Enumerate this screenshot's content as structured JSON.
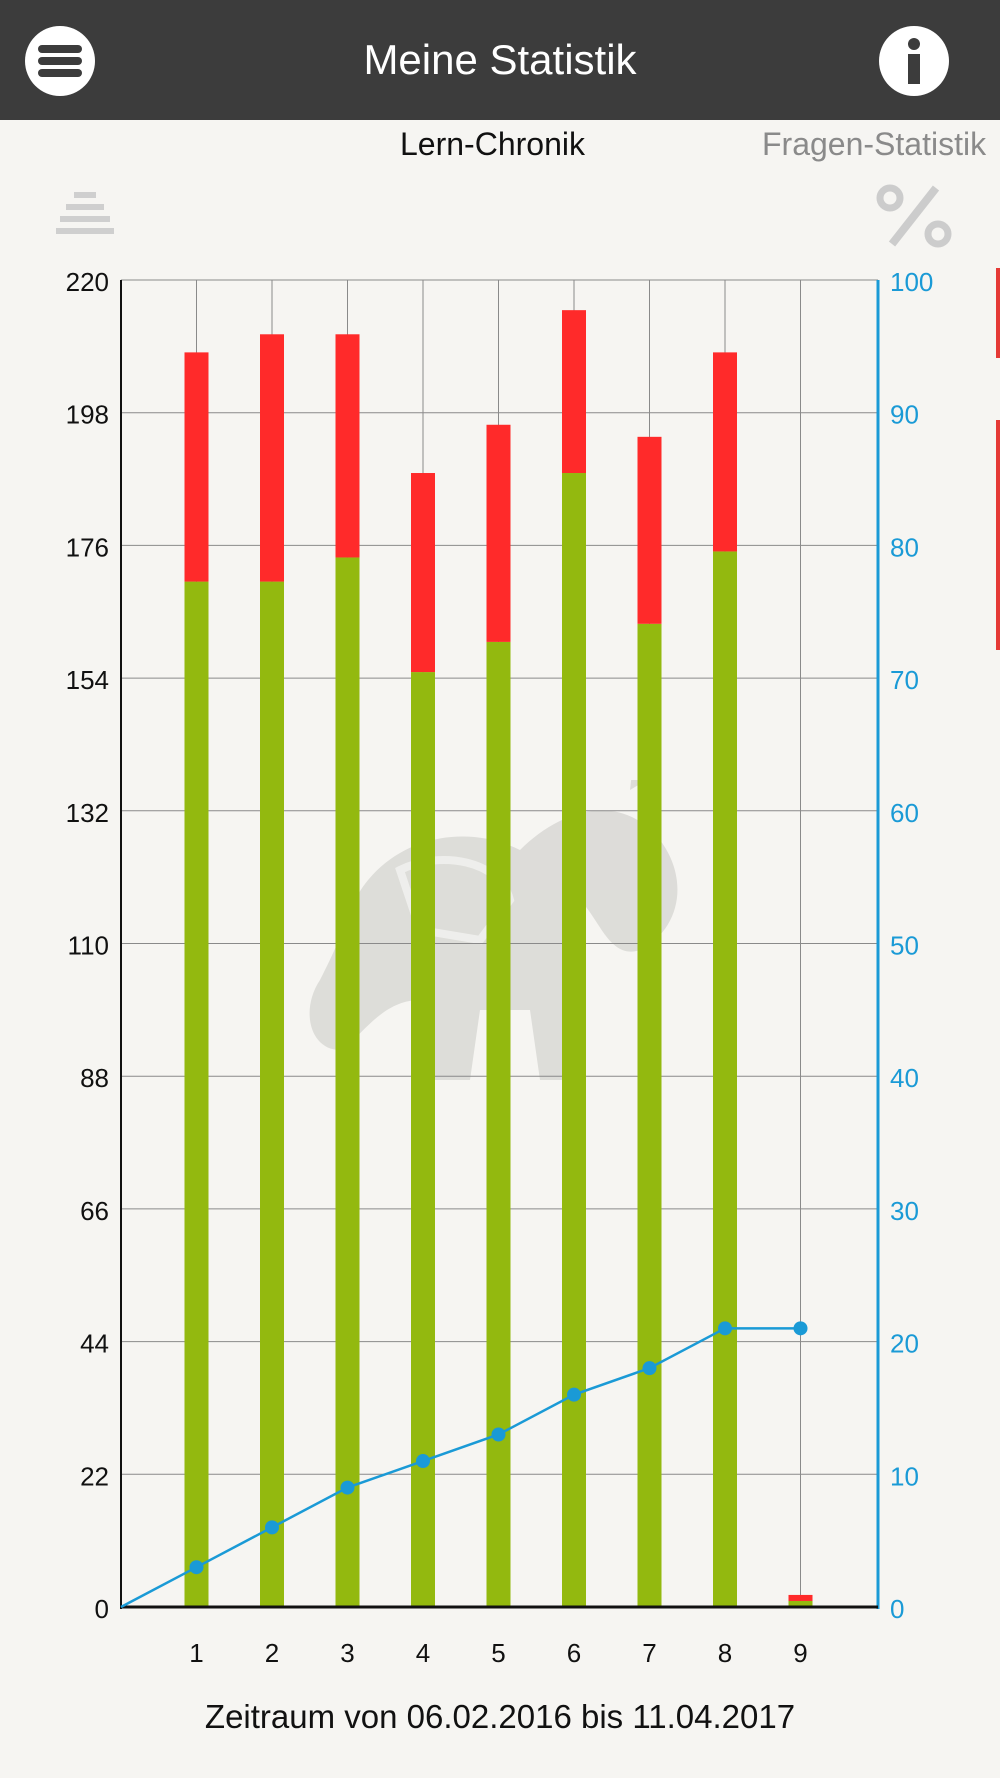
{
  "header": {
    "title": "Meine Statistik",
    "menu_icon": "hamburger-menu-icon",
    "info_icon": "info-icon",
    "background": "#3c3c3c"
  },
  "tabs": [
    {
      "label": "Lern-Chronik",
      "active": true
    },
    {
      "label": "Fragen-Statistik",
      "active": false
    }
  ],
  "toolbar": {
    "sort_icon": "sort-stack-icon",
    "percent_icon": "percent-icon"
  },
  "chart_data": {
    "type": "bar",
    "stacked": true,
    "categories": [
      "1",
      "2",
      "3",
      "4",
      "5",
      "6",
      "7",
      "8",
      "9"
    ],
    "series": [
      {
        "color": "#93b90f",
        "values": [
          170,
          170,
          174,
          155,
          160,
          188,
          163,
          175,
          1
        ]
      },
      {
        "color": "#ff2a2a",
        "values": [
          38,
          41,
          37,
          33,
          36,
          27,
          31,
          33,
          1
        ]
      }
    ],
    "line": {
      "color": "#1a9ad6",
      "axis": "right",
      "x": [
        0,
        1,
        2,
        3,
        4,
        5,
        6,
        7,
        8,
        9
      ],
      "values": [
        0,
        3,
        6,
        9,
        11,
        13,
        16,
        18,
        21,
        21
      ]
    },
    "y_left": {
      "ticks": [
        0,
        22,
        44,
        66,
        88,
        110,
        132,
        154,
        176,
        198,
        220
      ],
      "range": [
        0,
        220
      ]
    },
    "y_right": {
      "ticks": [
        0,
        10,
        20,
        30,
        40,
        50,
        60,
        70,
        80,
        90,
        100
      ],
      "range": [
        0,
        100
      ],
      "color": "#1a9ad6"
    },
    "grid": true,
    "xlabel": "Zeitraum von 06.02.2016 bis 11.04.2017"
  }
}
